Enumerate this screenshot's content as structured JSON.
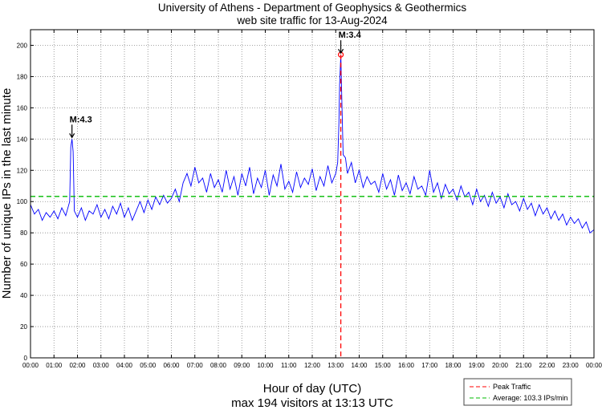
{
  "chart_data": {
    "type": "line",
    "title": [
      "University of Athens - Department of Geophysics & Geothermics",
      "web site traffic for 13-Aug-2024"
    ],
    "xlabel": "Hour of day (UTC)",
    "ylabel": "Number of unique IPs in the last minute",
    "subtitle": "max 194 visitors at 13:13 UTC",
    "xlim_minutes": [
      0,
      1440
    ],
    "ylim": [
      0,
      210
    ],
    "yticks": [
      0,
      20,
      40,
      60,
      80,
      100,
      120,
      140,
      160,
      180,
      200
    ],
    "xtick_labels": [
      "00:00",
      "01:00",
      "02:00",
      "03:00",
      "04:00",
      "05:00",
      "06:00",
      "07:00",
      "08:00",
      "09:00",
      "10:00",
      "11:00",
      "12:00",
      "13:00",
      "14:00",
      "15:00",
      "16:00",
      "17:00",
      "18:00",
      "19:00",
      "20:00",
      "21:00",
      "22:00",
      "23:00",
      "00:00"
    ],
    "grid": true,
    "average": 103.3,
    "peak": {
      "minute": 793,
      "value": 194
    },
    "annotations": [
      {
        "label": "M:4.3",
        "minute": 106,
        "value": 140
      },
      {
        "label": "M:3.4",
        "minute": 793,
        "value": 194
      }
    ],
    "legend": {
      "placement": "bottom-right-outside",
      "entries": [
        "Peak Traffic",
        "Average: 103.3 IPs/min"
      ]
    },
    "colors": {
      "series": "#0000ff",
      "peak": "#ff0000",
      "average": "#00bb00"
    },
    "series": [
      {
        "name": "Unique IPs per minute",
        "points": [
          [
            0,
            98
          ],
          [
            10,
            92
          ],
          [
            20,
            95
          ],
          [
            30,
            88
          ],
          [
            40,
            93
          ],
          [
            50,
            90
          ],
          [
            60,
            94
          ],
          [
            70,
            89
          ],
          [
            80,
            96
          ],
          [
            90,
            91
          ],
          [
            100,
            100
          ],
          [
            103,
            135
          ],
          [
            106,
            140
          ],
          [
            109,
            132
          ],
          [
            112,
            94
          ],
          [
            120,
            90
          ],
          [
            130,
            96
          ],
          [
            140,
            88
          ],
          [
            150,
            94
          ],
          [
            160,
            92
          ],
          [
            170,
            98
          ],
          [
            180,
            90
          ],
          [
            190,
            95
          ],
          [
            200,
            89
          ],
          [
            210,
            97
          ],
          [
            220,
            92
          ],
          [
            230,
            99
          ],
          [
            240,
            90
          ],
          [
            250,
            96
          ],
          [
            260,
            88
          ],
          [
            270,
            94
          ],
          [
            280,
            100
          ],
          [
            290,
            93
          ],
          [
            300,
            101
          ],
          [
            310,
            95
          ],
          [
            320,
            103
          ],
          [
            330,
            98
          ],
          [
            340,
            104
          ],
          [
            350,
            99
          ],
          [
            360,
            102
          ],
          [
            370,
            108
          ],
          [
            380,
            100
          ],
          [
            390,
            112
          ],
          [
            400,
            118
          ],
          [
            410,
            110
          ],
          [
            420,
            122
          ],
          [
            430,
            112
          ],
          [
            440,
            115
          ],
          [
            450,
            106
          ],
          [
            460,
            118
          ],
          [
            470,
            109
          ],
          [
            480,
            114
          ],
          [
            490,
            106
          ],
          [
            500,
            120
          ],
          [
            510,
            108
          ],
          [
            520,
            116
          ],
          [
            530,
            104
          ],
          [
            540,
            118
          ],
          [
            550,
            110
          ],
          [
            560,
            122
          ],
          [
            570,
            105
          ],
          [
            580,
            115
          ],
          [
            590,
            109
          ],
          [
            600,
            120
          ],
          [
            610,
            104
          ],
          [
            620,
            117
          ],
          [
            630,
            110
          ],
          [
            640,
            124
          ],
          [
            650,
            108
          ],
          [
            660,
            113
          ],
          [
            670,
            106
          ],
          [
            680,
            119
          ],
          [
            690,
            109
          ],
          [
            700,
            115
          ],
          [
            710,
            111
          ],
          [
            720,
            121
          ],
          [
            730,
            107
          ],
          [
            740,
            116
          ],
          [
            750,
            110
          ],
          [
            760,
            123
          ],
          [
            770,
            112
          ],
          [
            780,
            118
          ],
          [
            785,
            125
          ],
          [
            788,
            150
          ],
          [
            790,
            175
          ],
          [
            793,
            194
          ],
          [
            796,
            160
          ],
          [
            799,
            130
          ],
          [
            805,
            128
          ],
          [
            810,
            118
          ],
          [
            820,
            125
          ],
          [
            830,
            112
          ],
          [
            840,
            120
          ],
          [
            850,
            109
          ],
          [
            860,
            116
          ],
          [
            870,
            111
          ],
          [
            880,
            113
          ],
          [
            890,
            106
          ],
          [
            900,
            118
          ],
          [
            910,
            108
          ],
          [
            920,
            114
          ],
          [
            930,
            104
          ],
          [
            940,
            117
          ],
          [
            950,
            107
          ],
          [
            960,
            112
          ],
          [
            970,
            105
          ],
          [
            980,
            116
          ],
          [
            990,
            108
          ],
          [
            1000,
            110
          ],
          [
            1010,
            104
          ],
          [
            1020,
            120
          ],
          [
            1030,
            106
          ],
          [
            1040,
            112
          ],
          [
            1050,
            102
          ],
          [
            1060,
            111
          ],
          [
            1070,
            105
          ],
          [
            1080,
            108
          ],
          [
            1090,
            101
          ],
          [
            1100,
            110
          ],
          [
            1110,
            103
          ],
          [
            1120,
            106
          ],
          [
            1130,
            98
          ],
          [
            1140,
            108
          ],
          [
            1150,
            100
          ],
          [
            1160,
            104
          ],
          [
            1170,
            97
          ],
          [
            1180,
            106
          ],
          [
            1190,
            99
          ],
          [
            1200,
            103
          ],
          [
            1210,
            96
          ],
          [
            1220,
            105
          ],
          [
            1230,
            98
          ],
          [
            1240,
            100
          ],
          [
            1250,
            94
          ],
          [
            1260,
            102
          ],
          [
            1270,
            95
          ],
          [
            1280,
            99
          ],
          [
            1290,
            91
          ],
          [
            1300,
            98
          ],
          [
            1310,
            92
          ],
          [
            1320,
            96
          ],
          [
            1330,
            89
          ],
          [
            1340,
            94
          ],
          [
            1350,
            88
          ],
          [
            1360,
            92
          ],
          [
            1370,
            85
          ],
          [
            1380,
            90
          ],
          [
            1390,
            86
          ],
          [
            1400,
            89
          ],
          [
            1410,
            83
          ],
          [
            1420,
            87
          ],
          [
            1430,
            80
          ],
          [
            1440,
            82
          ]
        ]
      }
    ]
  }
}
